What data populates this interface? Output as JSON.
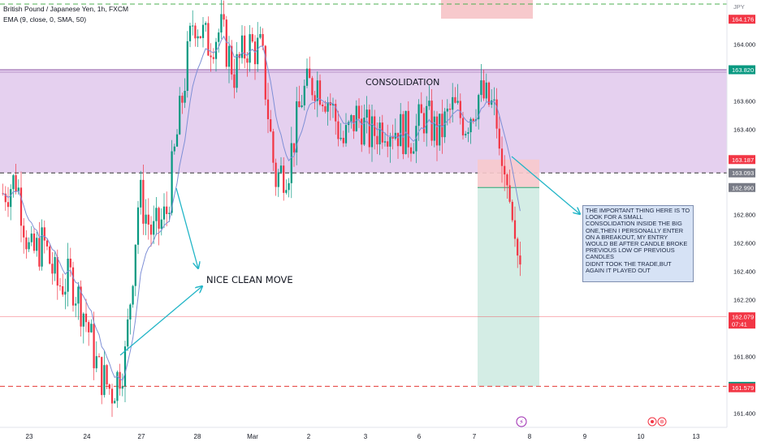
{
  "chart_data": {
    "type": "candlestick",
    "title": "British Pound / Japanese Yen, 1h, FXCM",
    "indicator": "EMA (9, close, 0, SMA, 50)",
    "currency": "JPY",
    "ylim": [
      161.3,
      164.3
    ],
    "y_ticks": [
      "164.000",
      "163.600",
      "163.400",
      "162.800",
      "162.600",
      "162.400",
      "162.200",
      "161.800",
      "161.400"
    ],
    "x_ticks": [
      "23",
      "24",
      "27",
      "28",
      "Mar",
      "2",
      "3",
      "6",
      "7",
      "8",
      "9",
      "10",
      "13"
    ],
    "price_labels": [
      {
        "value": "164.176",
        "color": "#f23645"
      },
      {
        "value": "163.820",
        "color": "#089981"
      },
      {
        "value": "163.187",
        "color": "#f23645"
      },
      {
        "value": "163.093",
        "color": "#787b86"
      },
      {
        "value": "162.990",
        "color": "#787b86"
      },
      {
        "value": "162.079",
        "color": "#f23645",
        "sub": "07:41"
      },
      {
        "value": "161.589",
        "color": "#089981"
      },
      {
        "value": "161.579",
        "color": "#f23645"
      }
    ],
    "consolidation_zone": [
      163.093,
      163.82
    ],
    "entry_level": 163.093,
    "stop_level": 163.187,
    "target_level": 161.589,
    "current_price": 162.079,
    "annotations": {
      "consolidation": "CONSOLIDATION",
      "clean_move": "NICE CLEAN MOVE",
      "note": "THE IMPORTANT THING HERE IS TO LOOK FOR A SMALL CONSOLIDATION INSIDE THE BIG ONE,THEN I PERSONALLY ENTER ON A BREAKOUT, MY ENTRY WOULD BE AFTER CANDLE BROKE PREVIOUS LOW OF PREVIOUS CANDLES\nDIDNT TOOK THE TRADE,BUT AGAIN IT PLAYED OUT"
    },
    "colors": {
      "up": "#089981",
      "down": "#f23645",
      "ema": "#7e8fd6",
      "consolidation_fill": "#e1c8ec",
      "consolidation_border": "#8e56a6",
      "stop_fill": "#f7c9cc",
      "target_fill": "#d4ede5",
      "arrow": "#22b5c7",
      "green_line": "#4caf50",
      "red_line": "#e53935"
    },
    "candle_anchors": [
      [
        162.95,
        162.4
      ],
      [
        163.05,
        162.25
      ],
      [
        162.5,
        162.35
      ],
      [
        162.6,
        162.05
      ],
      [
        162.3,
        161.7
      ],
      [
        162.35,
        162.1
      ],
      [
        162.1,
        161.95
      ],
      [
        161.7,
        162.05
      ],
      [
        161.55,
        162.25
      ],
      [
        161.8,
        162.7
      ],
      [
        162.95,
        162.85
      ],
      [
        162.65,
        162.45
      ],
      [
        162.8,
        163.1
      ],
      [
        163.5,
        163.9
      ],
      [
        164.2,
        164.1
      ],
      [
        164.0,
        164.05
      ],
      [
        164.1,
        163.9
      ],
      [
        163.8,
        164.05
      ],
      [
        164.0,
        164.15
      ],
      [
        163.95,
        163.65
      ],
      [
        163.05,
        163.45
      ],
      [
        163.15,
        163.05
      ],
      [
        163.65,
        163.7
      ],
      [
        163.75,
        163.5
      ],
      [
        163.6,
        163.35
      ],
      [
        163.3,
        163.4
      ],
      [
        163.5,
        163.3
      ],
      [
        163.35,
        163.45
      ],
      [
        163.45,
        163.2
      ],
      [
        163.4,
        163.3
      ],
      [
        163.35,
        163.55
      ],
      [
        163.5,
        163.45
      ],
      [
        163.35,
        163.5
      ],
      [
        163.55,
        163.3
      ],
      [
        163.45,
        163.4
      ],
      [
        163.65,
        163.75
      ],
      [
        163.55,
        163.45
      ],
      [
        163.2,
        163.15
      ],
      [
        163.1,
        162.1
      ]
    ]
  }
}
